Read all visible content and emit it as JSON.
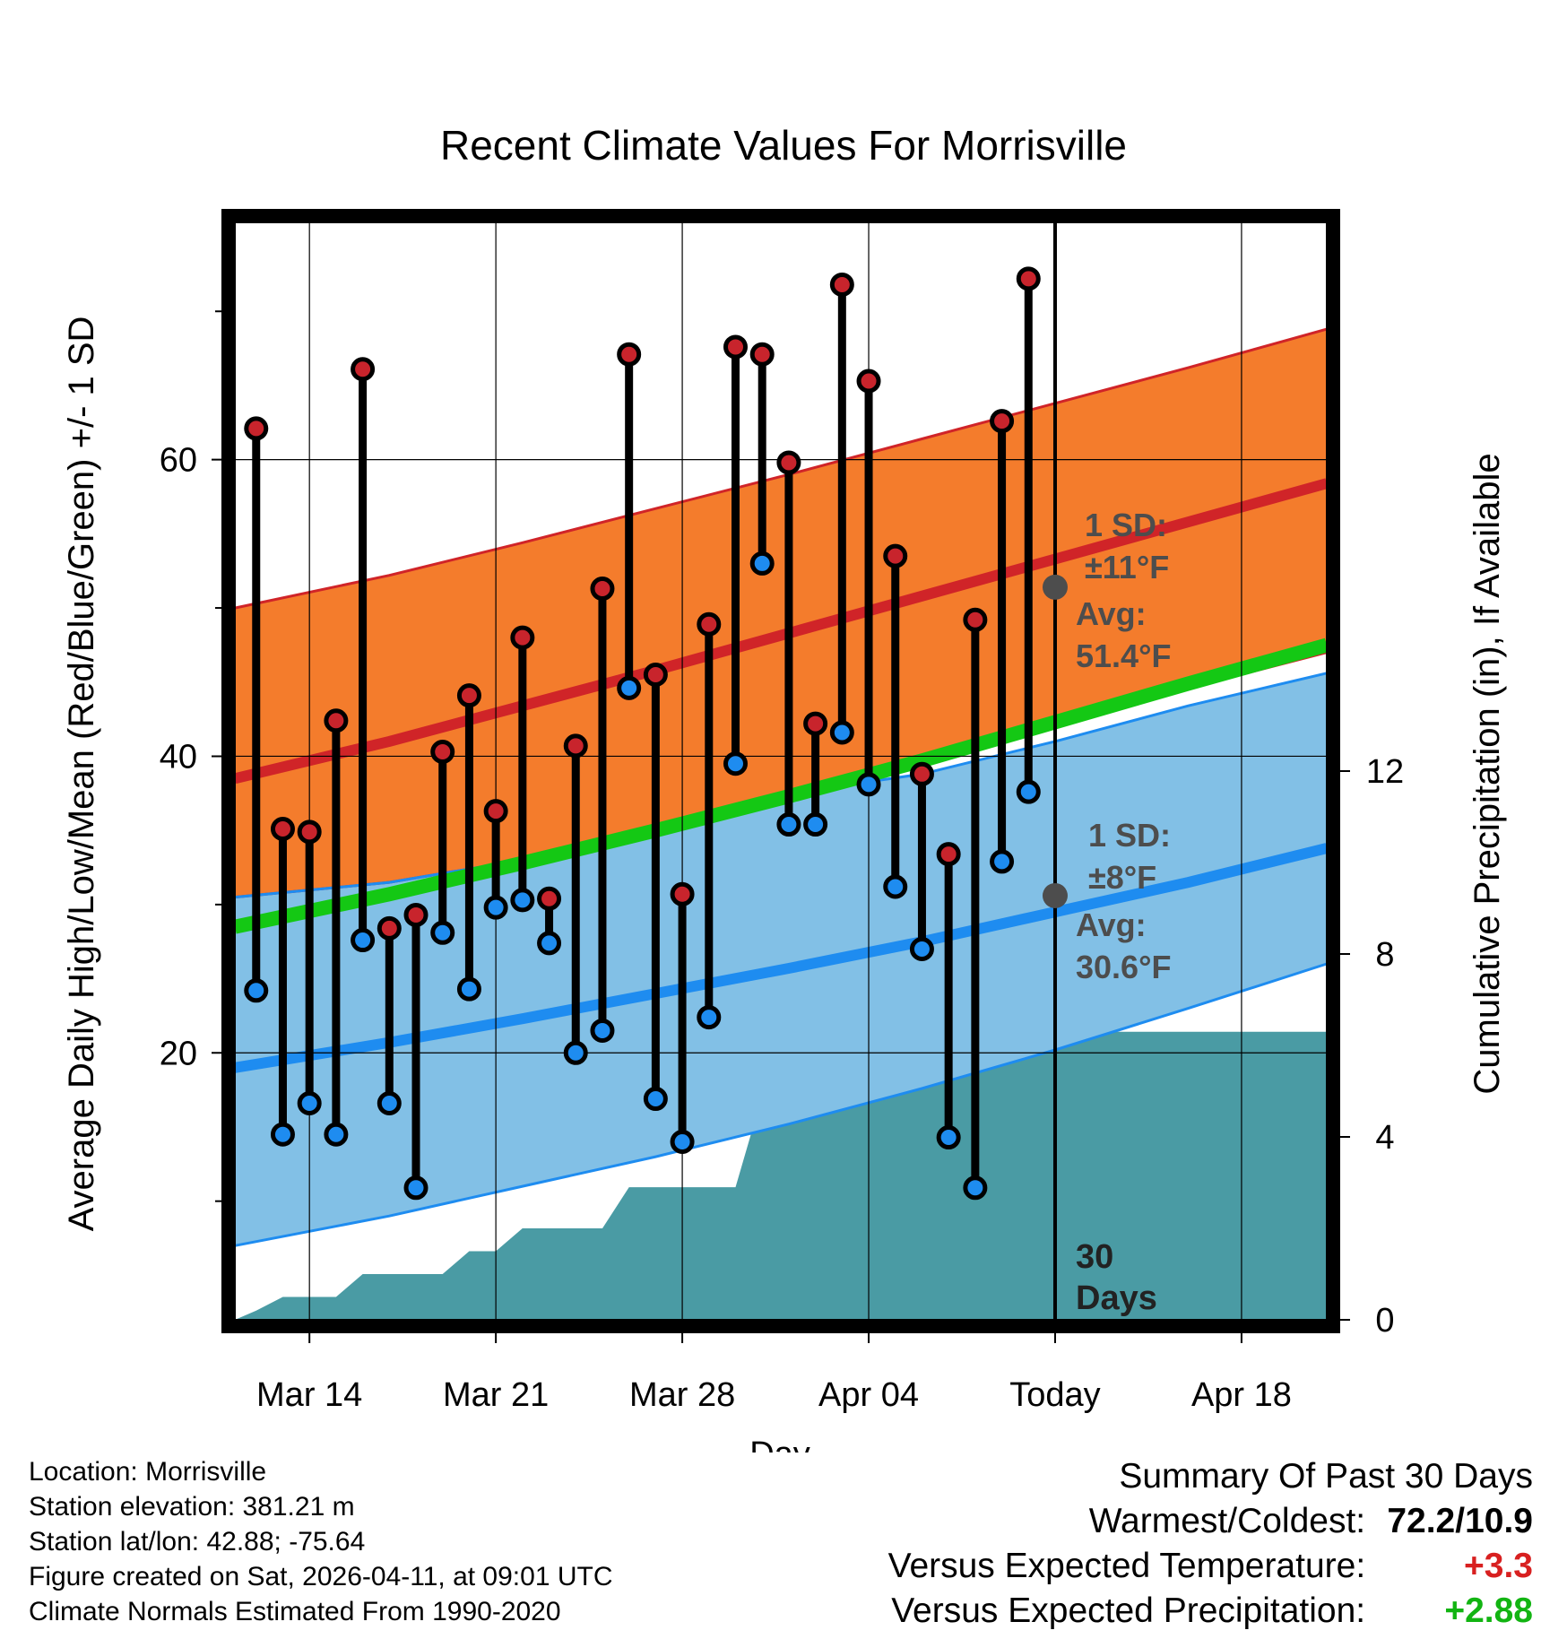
{
  "chart_data": {
    "type": "line",
    "title": "Recent Climate Values For Morrisville",
    "xlabel": "Day",
    "ylabel_left": "Average Daily High/Low/Mean (Red/Blue/Green) +/- 1 SD",
    "ylabel_right": "Cumulative Precipitation (in), If Available",
    "x_range_days": [
      -30.8,
      10.2
    ],
    "y_left_range": [
      2,
      76
    ],
    "y_right_range": [
      0,
      24
    ],
    "x_ticks": [
      {
        "day": -28,
        "label": "Mar 14"
      },
      {
        "day": -21,
        "label": "Mar 21"
      },
      {
        "day": -14,
        "label": "Mar 28"
      },
      {
        "day": -7,
        "label": "Apr 04"
      },
      {
        "day": 0,
        "label": "Today"
      },
      {
        "day": 7,
        "label": "Apr 18"
      }
    ],
    "y_left_ticks": [
      20,
      40,
      60
    ],
    "y_left_minor_ticks": [
      10,
      30,
      50,
      70
    ],
    "y_right_ticks": [
      0,
      4,
      8,
      12
    ],
    "normals": {
      "days": [
        -30.8,
        -25,
        -20,
        -15,
        -10,
        -5,
        0,
        5,
        10.2
      ],
      "high_mean": [
        38.5,
        41.0,
        43.4,
        45.8,
        48.3,
        50.8,
        53.3,
        55.8,
        58.4
      ],
      "high_upper": [
        50.0,
        52.2,
        54.4,
        56.7,
        59.0,
        61.4,
        63.8,
        66.2,
        68.8
      ],
      "high_lower": [
        30.5,
        31.5,
        33.0,
        35.3,
        37.5,
        39.8,
        42.2,
        44.6,
        47.0
      ],
      "low_mean": [
        19.0,
        20.7,
        22.3,
        24.0,
        25.7,
        27.5,
        29.5,
        31.5,
        33.8
      ],
      "low_upper": [
        30.5,
        31.5,
        33.0,
        35.3,
        37.5,
        38.8,
        41.0,
        43.4,
        45.6
      ],
      "low_lower": [
        7.0,
        9.0,
        11.0,
        13.0,
        15.2,
        17.6,
        20.2,
        23.0,
        26.0
      ],
      "mean": [
        28.5,
        30.7,
        32.8,
        35.0,
        37.3,
        39.7,
        42.3,
        44.9,
        47.5
      ]
    },
    "daily": [
      {
        "day": -30,
        "high": 62.1,
        "low": 24.2
      },
      {
        "day": -29,
        "high": 35.1,
        "low": 14.5
      },
      {
        "day": -28,
        "high": 34.9,
        "low": 16.6
      },
      {
        "day": -27,
        "high": 42.4,
        "low": 14.5
      },
      {
        "day": -26,
        "high": 66.1,
        "low": 27.6
      },
      {
        "day": -25,
        "high": 28.4,
        "low": 16.6
      },
      {
        "day": -24,
        "high": 29.3,
        "low": 10.9
      },
      {
        "day": -23,
        "high": 40.3,
        "low": 28.1
      },
      {
        "day": -22,
        "high": 44.1,
        "low": 24.3
      },
      {
        "day": -21,
        "high": 36.3,
        "low": 29.8
      },
      {
        "day": -20,
        "high": 48.0,
        "low": 30.3
      },
      {
        "day": -19,
        "high": 30.4,
        "low": 27.4
      },
      {
        "day": -18,
        "high": 40.7,
        "low": 20.0
      },
      {
        "day": -17,
        "high": 51.3,
        "low": 21.5
      },
      {
        "day": -16,
        "high": 67.1,
        "low": 44.6
      },
      {
        "day": -15,
        "high": 45.5,
        "low": 16.9
      },
      {
        "day": -14,
        "high": 30.7,
        "low": 14.0
      },
      {
        "day": -13,
        "high": 48.9,
        "low": 22.4
      },
      {
        "day": -12,
        "high": 67.6,
        "low": 39.5
      },
      {
        "day": -11,
        "high": 67.1,
        "low": 53.0
      },
      {
        "day": -10,
        "high": 59.8,
        "low": 35.4
      },
      {
        "day": -9,
        "high": 42.2,
        "low": 35.4
      },
      {
        "day": -8,
        "high": 71.8,
        "low": 41.6
      },
      {
        "day": -7,
        "high": 65.3,
        "low": 38.1
      },
      {
        "day": -6,
        "high": 53.5,
        "low": 31.2
      },
      {
        "day": -5,
        "high": 38.8,
        "low": 27.0
      },
      {
        "day": -4,
        "high": 33.4,
        "low": 14.3
      },
      {
        "day": -3,
        "high": 49.2,
        "low": 10.9
      },
      {
        "day": -2,
        "high": 62.6,
        "low": 32.9
      },
      {
        "day": -1,
        "high": 72.2,
        "low": 37.6
      }
    ],
    "precip_cumulative": {
      "days": [
        -30.8,
        -30,
        -29,
        -28,
        -27,
        -26,
        -25,
        -24,
        -23,
        -22,
        -21,
        -20,
        -19,
        -18,
        -17,
        -16,
        -15,
        -14,
        -13,
        -12,
        -11,
        -10,
        -9,
        -8,
        -7,
        -6,
        -5,
        -4,
        -3,
        -2,
        -1,
        0,
        10.2
      ],
      "values": [
        0.0,
        0.2,
        0.5,
        0.5,
        0.5,
        1.0,
        1.0,
        1.0,
        1.0,
        1.5,
        1.5,
        2.0,
        2.0,
        2.0,
        2.0,
        2.9,
        2.9,
        2.9,
        2.9,
        2.9,
        4.9,
        4.9,
        5.2,
        5.2,
        5.2,
        6.0,
        6.0,
        6.0,
        6.0,
        6.3,
        6.3,
        6.3,
        6.3
      ]
    },
    "annotations": {
      "high_sd": "1 SD:",
      "high_sd_value": "±11°F",
      "high_avg": "Avg:",
      "high_avg_value": "51.4°F",
      "high_avg_point": 51.4,
      "low_sd": "1 SD:",
      "low_sd_value": "±8°F",
      "low_avg": "Avg:",
      "low_avg_value": "30.6°F",
      "low_avg_point": 30.6,
      "period_number": "30",
      "period_unit": "Days"
    },
    "colors": {
      "high_band": "#f47c2c",
      "high_line": "#d02428",
      "low_band": "#82c0e6",
      "low_line": "#1e8cf0",
      "mean_line": "#14c814",
      "precip": "#4a9ba4",
      "high_dot": "#c8242c",
      "low_dot": "#1e8cf0",
      "annotation": "#4d4d4d"
    }
  },
  "footer": {
    "location": "Location: Morrisville",
    "elevation": "Station elevation: 381.21 m",
    "latlon": "Station lat/lon: 42.88; -75.64",
    "created": "Figure created on Sat, 2026-04-11, at 09:01 UTC",
    "normals": "Climate Normals Estimated From 1990-2020"
  },
  "summary": {
    "title": "Summary Of Past 30 Days",
    "warmest_label": "Warmest/Coldest:",
    "warmest_value": "72.2/10.9",
    "temp_label": "Versus Expected Temperature:",
    "temp_value": "+3.3",
    "temp_color": "#d82020",
    "precip_label": "Versus Expected Precipitation:",
    "precip_value": "+2.88",
    "precip_color": "#12b412"
  }
}
